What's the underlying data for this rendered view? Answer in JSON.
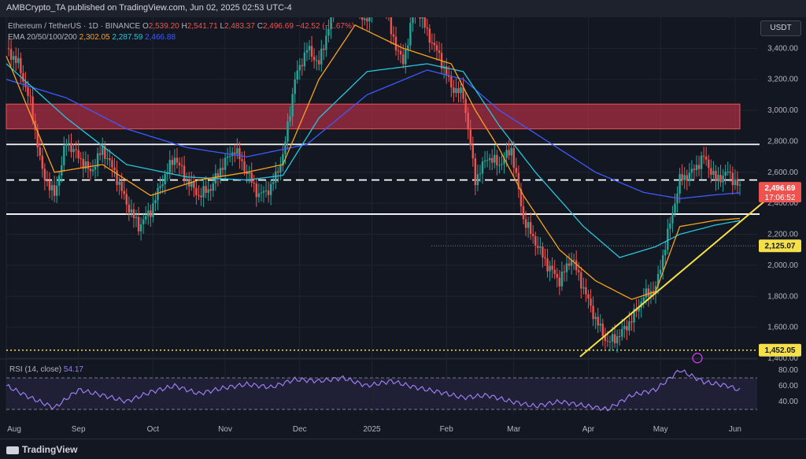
{
  "header": {
    "published": "AMBCrypto_TA published on TradingView.com, Jun 02, 2025 02:53 UTC-4"
  },
  "legend": {
    "symbol": "Ethereum / TetherUS · 1D · BINANCE",
    "o_label": "O",
    "o": "2,539.20",
    "h_label": "H",
    "h": "2,541.71",
    "l_label": "L",
    "l": "2,483.37",
    "c_label": "C",
    "c": "2,496.69",
    "change": "−42.52 (−1.67%)",
    "ema_label": "EMA 20/50/100/200",
    "ema1": "2,302.05",
    "ema2": "2,287.59",
    "ema3": "2,466.88"
  },
  "rsi_legend": {
    "label": "RSI (14, close)",
    "value": "54.17"
  },
  "currency_button": "USDT",
  "footer": {
    "brand": "TradingView"
  },
  "colors": {
    "up": "#26a69a",
    "down": "#ef5350",
    "ema20": "#f7a21b",
    "ema50": "#26c6da",
    "ema100": "#3d5afe",
    "rsi": "#9c7cf3",
    "zone": "#b22f45",
    "trend": "#f5e04a"
  },
  "chart_data": {
    "type": "candlestick",
    "title": "Ethereum / TetherUS · 1D · BINANCE",
    "x_ticks": [
      "Aug",
      "Sep",
      "Oct",
      "Nov",
      "Dec",
      "2025",
      "Feb",
      "Mar",
      "Apr",
      "May",
      "Jun"
    ],
    "y_ticks": [
      1400,
      1600,
      1800,
      2000,
      2200,
      2400,
      2600,
      2800,
      3000,
      3200,
      3400
    ],
    "y_tick_labels": [
      "1,400.00",
      "1,600.00",
      "1,800.00",
      "2,000.00",
      "2,200.00",
      "2,400.00",
      "2,600.00",
      "2,800.00",
      "3,000.00",
      "3,200.00",
      "3,400.00"
    ],
    "ylim": [
      1400,
      3600
    ],
    "price_path": [
      [
        0,
        3400
      ],
      [
        5,
        3300
      ],
      [
        10,
        3050
      ],
      [
        15,
        2600
      ],
      [
        20,
        2450
      ],
      [
        25,
        2800
      ],
      [
        30,
        2700
      ],
      [
        35,
        2600
      ],
      [
        40,
        2750
      ],
      [
        45,
        2600
      ],
      [
        50,
        2400
      ],
      [
        55,
        2250
      ],
      [
        60,
        2350
      ],
      [
        65,
        2550
      ],
      [
        70,
        2700
      ],
      [
        75,
        2550
      ],
      [
        80,
        2450
      ],
      [
        85,
        2500
      ],
      [
        90,
        2650
      ],
      [
        95,
        2750
      ],
      [
        100,
        2600
      ],
      [
        105,
        2450
      ],
      [
        110,
        2500
      ],
      [
        115,
        2700
      ],
      [
        120,
        3200
      ],
      [
        125,
        3400
      ],
      [
        130,
        3300
      ],
      [
        135,
        3600
      ],
      [
        140,
        3900
      ],
      [
        145,
        3700
      ],
      [
        150,
        3550
      ],
      [
        155,
        3900
      ],
      [
        160,
        3500
      ],
      [
        165,
        3300
      ],
      [
        170,
        3700
      ],
      [
        175,
        3500
      ],
      [
        180,
        3350
      ],
      [
        185,
        3150
      ],
      [
        190,
        3100
      ],
      [
        195,
        2550
      ],
      [
        200,
        2700
      ],
      [
        205,
        2650
      ],
      [
        210,
        2750
      ],
      [
        215,
        2300
      ],
      [
        220,
        2150
      ],
      [
        225,
        2000
      ],
      [
        230,
        1900
      ],
      [
        235,
        2050
      ],
      [
        240,
        1850
      ],
      [
        245,
        1650
      ],
      [
        250,
        1500
      ],
      [
        255,
        1550
      ],
      [
        260,
        1650
      ],
      [
        265,
        1800
      ],
      [
        270,
        1850
      ],
      [
        275,
        2200
      ],
      [
        280,
        2550
      ],
      [
        285,
        2600
      ],
      [
        290,
        2700
      ],
      [
        295,
        2550
      ],
      [
        300,
        2600
      ],
      [
        305,
        2497
      ]
    ],
    "ema20": [
      [
        0,
        3350
      ],
      [
        20,
        2600
      ],
      [
        40,
        2650
      ],
      [
        60,
        2450
      ],
      [
        80,
        2550
      ],
      [
        100,
        2600
      ],
      [
        115,
        2650
      ],
      [
        130,
        3200
      ],
      [
        145,
        3550
      ],
      [
        165,
        3400
      ],
      [
        185,
        3300
      ],
      [
        195,
        3000
      ],
      [
        205,
        2750
      ],
      [
        215,
        2450
      ],
      [
        230,
        2100
      ],
      [
        245,
        1900
      ],
      [
        260,
        1780
      ],
      [
        270,
        1830
      ],
      [
        280,
        2250
      ],
      [
        295,
        2290
      ],
      [
        305,
        2302
      ]
    ],
    "ema50": [
      [
        0,
        3300
      ],
      [
        25,
        2950
      ],
      [
        50,
        2650
      ],
      [
        75,
        2570
      ],
      [
        100,
        2550
      ],
      [
        115,
        2580
      ],
      [
        130,
        2950
      ],
      [
        150,
        3250
      ],
      [
        175,
        3300
      ],
      [
        190,
        3250
      ],
      [
        205,
        2900
      ],
      [
        220,
        2600
      ],
      [
        240,
        2250
      ],
      [
        255,
        2050
      ],
      [
        270,
        2120
      ],
      [
        280,
        2200
      ],
      [
        295,
        2260
      ],
      [
        305,
        2288
      ]
    ],
    "ema100": [
      [
        0,
        3200
      ],
      [
        25,
        3080
      ],
      [
        50,
        2880
      ],
      [
        75,
        2760
      ],
      [
        100,
        2700
      ],
      [
        125,
        2780
      ],
      [
        150,
        3100
      ],
      [
        175,
        3260
      ],
      [
        190,
        3200
      ],
      [
        205,
        3000
      ],
      [
        225,
        2800
      ],
      [
        245,
        2600
      ],
      [
        265,
        2470
      ],
      [
        280,
        2430
      ],
      [
        295,
        2455
      ],
      [
        305,
        2467
      ]
    ],
    "levels": [
      2780,
      2550,
      2330
    ],
    "levels_style": [
      "solid",
      "dashed",
      "solid"
    ],
    "supply_zone": [
      2880,
      3040
    ],
    "dotted_level": 2125.07,
    "dotted_low": 1452.05,
    "trendline": [
      [
        250,
        1410
      ],
      [
        315,
        2410
      ]
    ],
    "price_labels": [
      {
        "value": "2,496.69",
        "sub": "17:06:52",
        "color": "#ef5350"
      },
      {
        "value": "2,125.07",
        "color": "#f5e04a"
      },
      {
        "value": "1,452.05",
        "color": "#f5e04a"
      }
    ],
    "rsi": {
      "name": "RSI (14, close)",
      "ticks": [
        40,
        60,
        80
      ],
      "tick_labels": [
        "40.00",
        "60.00",
        "80.00"
      ],
      "upper": 70,
      "lower": 30,
      "ylim": [
        25,
        90
      ],
      "path": [
        [
          0,
          60
        ],
        [
          10,
          45
        ],
        [
          20,
          32
        ],
        [
          30,
          55
        ],
        [
          40,
          48
        ],
        [
          50,
          40
        ],
        [
          60,
          52
        ],
        [
          70,
          60
        ],
        [
          80,
          50
        ],
        [
          90,
          57
        ],
        [
          100,
          62
        ],
        [
          110,
          58
        ],
        [
          120,
          68
        ],
        [
          130,
          66
        ],
        [
          140,
          70
        ],
        [
          150,
          60
        ],
        [
          160,
          66
        ],
        [
          170,
          58
        ],
        [
          180,
          52
        ],
        [
          190,
          45
        ],
        [
          200,
          48
        ],
        [
          210,
          40
        ],
        [
          220,
          34
        ],
        [
          230,
          40
        ],
        [
          240,
          35
        ],
        [
          250,
          30
        ],
        [
          260,
          48
        ],
        [
          270,
          55
        ],
        [
          280,
          80
        ],
        [
          290,
          65
        ],
        [
          300,
          60
        ],
        [
          305,
          54
        ]
      ]
    }
  }
}
